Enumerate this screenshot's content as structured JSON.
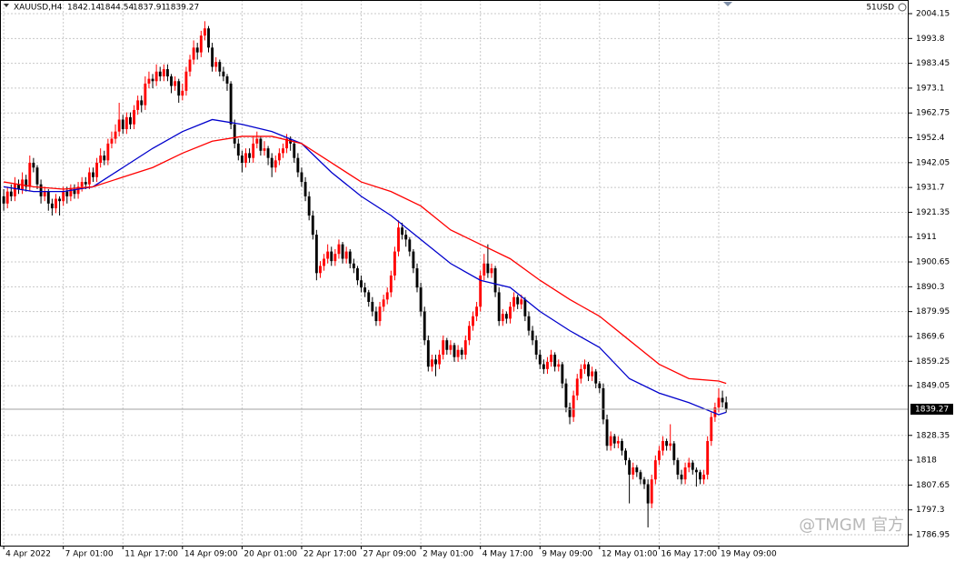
{
  "chart_data": {
    "type": "candlestick",
    "symbol": "XAUUSD,H4",
    "corner_label": "51USD",
    "watermark": "@TMGM 官方",
    "up_color": "#ff0000",
    "down_color": "#000000",
    "grid": true,
    "xlim": [
      -1,
      243
    ],
    "ylim": [
      1782.4,
      2009.84
    ],
    "yticks": [
      1786.95,
      1797.3,
      1807.65,
      1818.0,
      1828.35,
      1849.05,
      1859.25,
      1869.6,
      1879.95,
      1890.3,
      1900.65,
      1911.0,
      1921.35,
      1931.7,
      1942.05,
      1952.4,
      1962.75,
      1973.1,
      1983.45,
      1993.8,
      2004.15
    ],
    "xticks": [
      {
        "value": 0,
        "label": "4 Apr 2022"
      },
      {
        "value": 16,
        "label": "7 Apr 01:00"
      },
      {
        "value": 32,
        "label": "11 Apr 17:00"
      },
      {
        "value": 48,
        "label": "14 Apr 09:00"
      },
      {
        "value": 64,
        "label": "20 Apr 01:00"
      },
      {
        "value": 80,
        "label": "22 Apr 17:00"
      },
      {
        "value": 96,
        "label": "27 Apr 09:00"
      },
      {
        "value": 112,
        "label": "2 May 01:00"
      },
      {
        "value": 128,
        "label": "4 May 17:00"
      },
      {
        "value": 144,
        "label": "9 May 09:00"
      },
      {
        "value": 160,
        "label": "12 May 01:00"
      },
      {
        "value": 176,
        "label": "16 May 17:00"
      },
      {
        "value": 192,
        "label": "19 May 09:00"
      }
    ],
    "candles": [
      [
        1928,
        1931,
        1922,
        1925
      ],
      [
        1925,
        1932,
        1923,
        1930
      ],
      [
        1930,
        1933,
        1926,
        1928
      ],
      [
        1928,
        1936,
        1926,
        1933
      ],
      [
        1933,
        1935,
        1929,
        1931
      ],
      [
        1931,
        1938,
        1929,
        1935
      ],
      [
        1935,
        1937,
        1930,
        1932
      ],
      [
        1932,
        1945,
        1930,
        1942
      ],
      [
        1942,
        1944,
        1938,
        1940
      ],
      [
        1940,
        1941,
        1931,
        1933
      ],
      [
        1933,
        1935,
        1925,
        1928
      ],
      [
        1928,
        1932,
        1926,
        1930
      ],
      [
        1930,
        1931,
        1922,
        1925
      ],
      [
        1925,
        1927,
        1920,
        1923
      ],
      [
        1923,
        1929,
        1921,
        1927
      ],
      [
        1927,
        1928,
        1920,
        1926
      ],
      [
        1926,
        1932,
        1924,
        1930
      ],
      [
        1930,
        1932,
        1925,
        1928
      ],
      [
        1928,
        1933,
        1926,
        1931
      ],
      [
        1931,
        1933,
        1927,
        1929
      ],
      [
        1929,
        1934,
        1927,
        1932
      ],
      [
        1932,
        1936,
        1930,
        1934
      ],
      [
        1934,
        1936,
        1931,
        1933
      ],
      [
        1933,
        1940,
        1931,
        1938
      ],
      [
        1938,
        1940,
        1934,
        1936
      ],
      [
        1936,
        1944,
        1934,
        1942
      ],
      [
        1942,
        1948,
        1940,
        1945
      ],
      [
        1945,
        1947,
        1941,
        1943
      ],
      [
        1943,
        1952,
        1941,
        1950
      ],
      [
        1950,
        1955,
        1948,
        1952
      ],
      [
        1952,
        1958,
        1950,
        1955
      ],
      [
        1955,
        1967,
        1953,
        1960
      ],
      [
        1960,
        1962,
        1954,
        1956
      ],
      [
        1956,
        1963,
        1954,
        1961
      ],
      [
        1961,
        1963,
        1956,
        1958
      ],
      [
        1958,
        1966,
        1956,
        1964
      ],
      [
        1964,
        1970,
        1962,
        1968
      ],
      [
        1968,
        1970,
        1963,
        1966
      ],
      [
        1966,
        1978,
        1964,
        1975
      ],
      [
        1975,
        1980,
        1973,
        1977
      ],
      [
        1977,
        1979,
        1973,
        1976
      ],
      [
        1976,
        1983,
        1974,
        1980
      ],
      [
        1980,
        1982,
        1976,
        1978
      ],
      [
        1978,
        1983,
        1976,
        1981
      ],
      [
        1981,
        1983,
        1976,
        1978
      ],
      [
        1978,
        1979,
        1971,
        1974
      ],
      [
        1974,
        1978,
        1972,
        1976
      ],
      [
        1976,
        1977,
        1967,
        1970
      ],
      [
        1970,
        1975,
        1968,
        1972
      ],
      [
        1972,
        1982,
        1970,
        1980
      ],
      [
        1980,
        1987,
        1978,
        1985
      ],
      [
        1985,
        1993,
        1983,
        1990
      ],
      [
        1990,
        1992,
        1985,
        1988
      ],
      [
        1988,
        1997,
        1986,
        1995
      ],
      [
        1995,
        2001,
        1993,
        1998
      ],
      [
        1998,
        1999,
        1988,
        1990
      ],
      [
        1990,
        1992,
        1980,
        1982
      ],
      [
        1982,
        1986,
        1980,
        1984
      ],
      [
        1984,
        1985,
        1978,
        1980
      ],
      [
        1980,
        1982,
        1976,
        1978
      ],
      [
        1978,
        1979,
        1972,
        1975
      ],
      [
        1975,
        1976,
        1956,
        1958
      ],
      [
        1958,
        1960,
        1948,
        1950
      ],
      [
        1950,
        1952,
        1943,
        1945
      ],
      [
        1945,
        1947,
        1938,
        1942
      ],
      [
        1942,
        1948,
        1940,
        1946
      ],
      [
        1946,
        1948,
        1942,
        1944
      ],
      [
        1944,
        1953,
        1942,
        1950
      ],
      [
        1950,
        1955,
        1948,
        1952
      ],
      [
        1952,
        1953,
        1945,
        1947
      ],
      [
        1947,
        1951,
        1945,
        1948
      ],
      [
        1948,
        1949,
        1941,
        1944
      ],
      [
        1944,
        1946,
        1936,
        1940
      ],
      [
        1940,
        1945,
        1938,
        1943
      ],
      [
        1943,
        1948,
        1941,
        1946
      ],
      [
        1946,
        1950,
        1944,
        1948
      ],
      [
        1948,
        1954,
        1946,
        1952
      ],
      [
        1952,
        1953,
        1947,
        1950
      ],
      [
        1950,
        1951,
        1942,
        1944
      ],
      [
        1944,
        1946,
        1936,
        1938
      ],
      [
        1938,
        1940,
        1932,
        1934
      ],
      [
        1934,
        1936,
        1926,
        1928
      ],
      [
        1928,
        1930,
        1918,
        1920
      ],
      [
        1920,
        1922,
        1910,
        1912
      ],
      [
        1912,
        1914,
        1893,
        1896
      ],
      [
        1896,
        1901,
        1894,
        1899
      ],
      [
        1899,
        1904,
        1897,
        1902
      ],
      [
        1902,
        1908,
        1900,
        1905
      ],
      [
        1905,
        1907,
        1899,
        1901
      ],
      [
        1901,
        1906,
        1899,
        1904
      ],
      [
        1904,
        1910,
        1902,
        1908
      ],
      [
        1908,
        1909,
        1900,
        1902
      ],
      [
        1902,
        1907,
        1900,
        1905
      ],
      [
        1905,
        1906,
        1898,
        1900
      ],
      [
        1900,
        1902,
        1896,
        1898
      ],
      [
        1898,
        1899,
        1891,
        1893
      ],
      [
        1893,
        1895,
        1888,
        1890
      ],
      [
        1890,
        1892,
        1886,
        1888
      ],
      [
        1888,
        1889,
        1882,
        1884
      ],
      [
        1884,
        1886,
        1878,
        1880
      ],
      [
        1880,
        1882,
        1874,
        1876
      ],
      [
        1876,
        1884,
        1874,
        1882
      ],
      [
        1882,
        1887,
        1880,
        1885
      ],
      [
        1885,
        1890,
        1883,
        1888
      ],
      [
        1888,
        1897,
        1886,
        1895
      ],
      [
        1895,
        1907,
        1893,
        1905
      ],
      [
        1905,
        1918,
        1903,
        1915
      ],
      [
        1915,
        1917,
        1910,
        1912
      ],
      [
        1912,
        1914,
        1907,
        1910
      ],
      [
        1910,
        1911,
        1903,
        1905
      ],
      [
        1905,
        1906,
        1896,
        1898
      ],
      [
        1898,
        1900,
        1888,
        1890
      ],
      [
        1890,
        1892,
        1878,
        1880
      ],
      [
        1880,
        1882,
        1866,
        1868
      ],
      [
        1868,
        1870,
        1855,
        1857
      ],
      [
        1857,
        1862,
        1855,
        1860
      ],
      [
        1860,
        1862,
        1853,
        1858
      ],
      [
        1858,
        1864,
        1856,
        1862
      ],
      [
        1862,
        1870,
        1860,
        1868
      ],
      [
        1868,
        1869,
        1862,
        1864
      ],
      [
        1864,
        1868,
        1862,
        1866
      ],
      [
        1866,
        1867,
        1859,
        1861
      ],
      [
        1861,
        1866,
        1859,
        1864
      ],
      [
        1864,
        1865,
        1860,
        1862
      ],
      [
        1862,
        1870,
        1860,
        1868
      ],
      [
        1868,
        1876,
        1866,
        1874
      ],
      [
        1874,
        1880,
        1872,
        1878
      ],
      [
        1878,
        1884,
        1876,
        1882
      ],
      [
        1882,
        1897,
        1880,
        1895
      ],
      [
        1895,
        1904,
        1893,
        1900
      ],
      [
        1900,
        1908,
        1894,
        1896
      ],
      [
        1896,
        1900,
        1894,
        1898
      ],
      [
        1898,
        1899,
        1886,
        1888
      ],
      [
        1888,
        1890,
        1874,
        1876
      ],
      [
        1876,
        1881,
        1874,
        1879
      ],
      [
        1879,
        1880,
        1875,
        1877
      ],
      [
        1877,
        1884,
        1875,
        1882
      ],
      [
        1882,
        1888,
        1880,
        1886
      ],
      [
        1886,
        1887,
        1881,
        1883
      ],
      [
        1883,
        1887,
        1881,
        1885
      ],
      [
        1885,
        1886,
        1876,
        1878
      ],
      [
        1878,
        1880,
        1870,
        1872
      ],
      [
        1872,
        1874,
        1866,
        1868
      ],
      [
        1868,
        1870,
        1860,
        1862
      ],
      [
        1862,
        1864,
        1856,
        1858
      ],
      [
        1858,
        1860,
        1854,
        1856
      ],
      [
        1856,
        1861,
        1854,
        1859
      ],
      [
        1859,
        1864,
        1857,
        1862
      ],
      [
        1862,
        1863,
        1855,
        1857
      ],
      [
        1857,
        1860,
        1855,
        1858
      ],
      [
        1858,
        1859,
        1848,
        1850
      ],
      [
        1850,
        1852,
        1838,
        1840
      ],
      [
        1840,
        1842,
        1833,
        1836
      ],
      [
        1836,
        1847,
        1834,
        1845
      ],
      [
        1845,
        1854,
        1843,
        1852
      ],
      [
        1852,
        1858,
        1850,
        1856
      ],
      [
        1856,
        1860,
        1854,
        1858
      ],
      [
        1858,
        1859,
        1851,
        1853
      ],
      [
        1853,
        1857,
        1851,
        1855
      ],
      [
        1855,
        1856,
        1848,
        1850
      ],
      [
        1850,
        1851,
        1846,
        1848
      ],
      [
        1848,
        1850,
        1833,
        1835
      ],
      [
        1835,
        1837,
        1822,
        1824
      ],
      [
        1824,
        1830,
        1822,
        1828
      ],
      [
        1828,
        1829,
        1823,
        1825
      ],
      [
        1825,
        1828,
        1823,
        1826
      ],
      [
        1826,
        1827,
        1820,
        1822
      ],
      [
        1822,
        1823,
        1816,
        1818
      ],
      [
        1818,
        1819,
        1800,
        1812
      ],
      [
        1812,
        1817,
        1810,
        1815
      ],
      [
        1815,
        1816,
        1811,
        1813
      ],
      [
        1813,
        1814,
        1808,
        1810
      ],
      [
        1810,
        1811,
        1806,
        1808
      ],
      [
        1808,
        1810,
        1790,
        1800
      ],
      [
        1800,
        1812,
        1798,
        1810
      ],
      [
        1810,
        1820,
        1808,
        1818
      ],
      [
        1818,
        1824,
        1816,
        1822
      ],
      [
        1822,
        1828,
        1820,
        1826
      ],
      [
        1826,
        1827,
        1822,
        1824
      ],
      [
        1824,
        1833,
        1822,
        1825
      ],
      [
        1825,
        1826,
        1816,
        1818
      ],
      [
        1818,
        1819,
        1810,
        1812
      ],
      [
        1812,
        1814,
        1808,
        1810
      ],
      [
        1810,
        1817,
        1808,
        1815
      ],
      [
        1815,
        1819,
        1813,
        1817
      ],
      [
        1817,
        1818,
        1812,
        1814
      ],
      [
        1814,
        1815,
        1807,
        1813
      ],
      [
        1813,
        1814,
        1808,
        1810
      ],
      [
        1810,
        1814,
        1808,
        1812
      ],
      [
        1812,
        1828,
        1810,
        1826
      ],
      [
        1826,
        1838,
        1824,
        1836
      ],
      [
        1836,
        1842,
        1834,
        1840
      ],
      [
        1840,
        1848,
        1838,
        1844
      ],
      [
        1844,
        1847,
        1840,
        1842.14
      ],
      [
        1842.14,
        1844.54,
        1837.91,
        1839.27
      ]
    ],
    "series": [
      {
        "color": "#0000cc",
        "x": [
          0,
          8,
          16,
          24,
          32,
          40,
          48,
          56,
          64,
          72,
          80,
          88,
          96,
          104,
          112,
          120,
          128,
          136,
          144,
          152,
          160,
          168,
          176,
          184,
          192,
          194
        ],
        "values": [
          1932,
          1930,
          1930,
          1932,
          1940,
          1948,
          1955,
          1960,
          1958,
          1955,
          1950,
          1938,
          1928,
          1920,
          1910,
          1900,
          1893,
          1890,
          1880,
          1872,
          1865,
          1852,
          1846,
          1842,
          1837,
          1838
        ]
      },
      {
        "color": "#ff0000",
        "x": [
          0,
          8,
          16,
          24,
          32,
          40,
          48,
          56,
          64,
          72,
          80,
          88,
          96,
          104,
          112,
          120,
          128,
          136,
          144,
          152,
          160,
          168,
          176,
          184,
          192,
          194
        ],
        "values": [
          1934,
          1932,
          1931,
          1932,
          1936,
          1940,
          1946,
          1951,
          1953,
          1953,
          1950,
          1942,
          1934,
          1930,
          1924,
          1914,
          1908,
          1902,
          1893,
          1885,
          1878,
          1868,
          1858,
          1852,
          1851,
          1850
        ]
      }
    ]
  }
}
